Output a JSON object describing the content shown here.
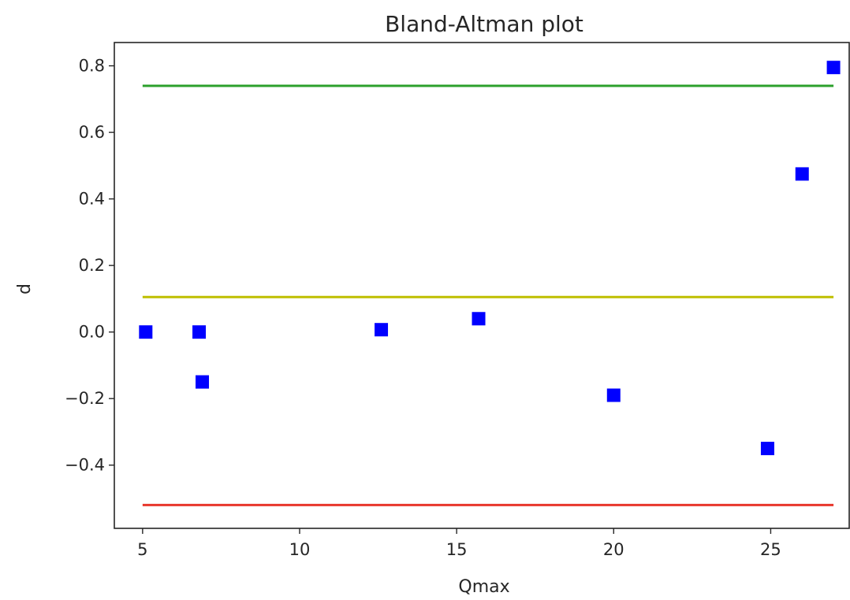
{
  "chart_data": {
    "type": "scatter",
    "title": "Bland-Altman plot",
    "xlabel": "Qmax",
    "ylabel": "d",
    "xlim": [
      4.1,
      27.5
    ],
    "ylim": [
      -0.59,
      0.87
    ],
    "xticks": [
      5,
      10,
      15,
      20,
      25
    ],
    "xtick_labels": [
      "5",
      "10",
      "15",
      "20",
      "25"
    ],
    "yticks": [
      -0.4,
      -0.2,
      0.0,
      0.2,
      0.4,
      0.6,
      0.8
    ],
    "ytick_labels": [
      "−0.4",
      "−0.2",
      "0.0",
      "0.2",
      "0.4",
      "0.6",
      "0.8"
    ],
    "grid": false,
    "points": {
      "marker": "square",
      "color": "#0000ff",
      "x": [
        5.1,
        6.8,
        6.9,
        12.6,
        15.7,
        20.0,
        24.9,
        26.0,
        27.0
      ],
      "y": [
        0.0,
        0.0,
        -0.15,
        0.007,
        0.04,
        -0.19,
        -0.35,
        0.475,
        0.795
      ]
    },
    "reference_lines": [
      {
        "role": "upper-limit",
        "y": 0.74,
        "x": [
          5.0,
          27.0
        ],
        "color": "#2ca02c"
      },
      {
        "role": "mean",
        "y": 0.105,
        "x": [
          5.0,
          27.0
        ],
        "color": "#bfbf00"
      },
      {
        "role": "lower-limit",
        "y": -0.52,
        "x": [
          5.0,
          27.0
        ],
        "color": "#e8372c"
      }
    ]
  }
}
